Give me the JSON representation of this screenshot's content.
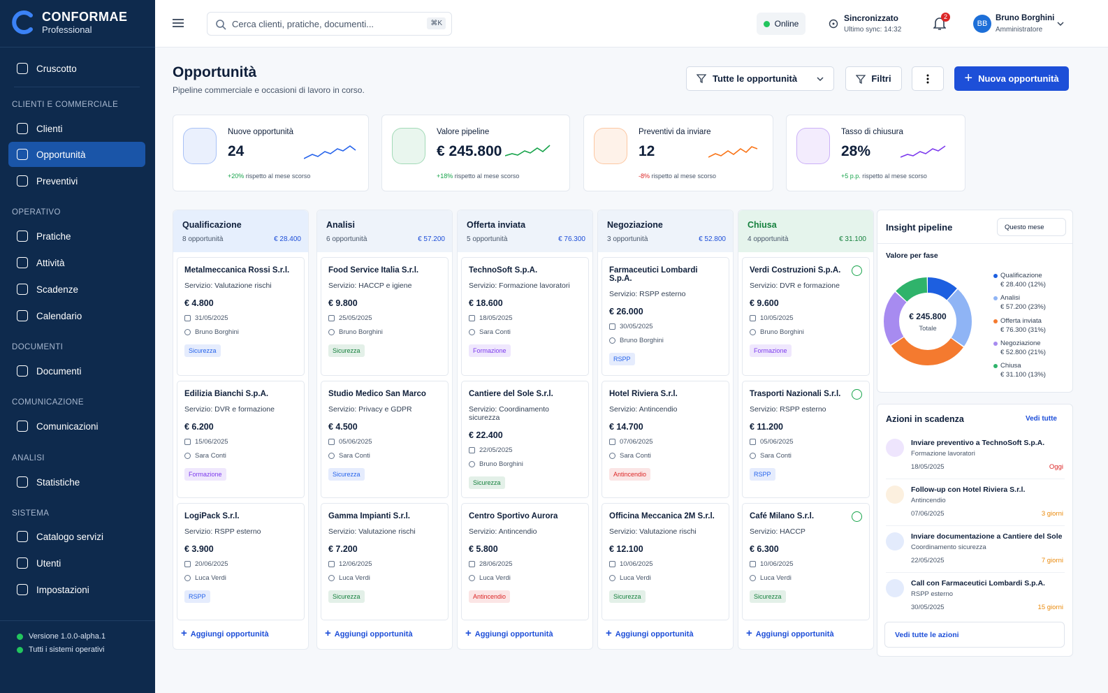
{
  "sidebar": {
    "brand": {
      "name": "CONFORMAE",
      "sub": "Professional"
    },
    "top_item": "Cruscotto",
    "sections": [
      {
        "title": "CLIENTI E COMMERCIALE",
        "items": [
          "Clienti",
          "Opportunità",
          "Preventivi"
        ]
      },
      {
        "title": "OPERATIVO",
        "items": [
          "Pratiche",
          "Attività",
          "Scadenze",
          "Calendario"
        ]
      },
      {
        "title": "DOCUMENTI",
        "items": [
          "Documenti"
        ]
      },
      {
        "title": "COMUNICAZIONE",
        "items": [
          "Comunicazioni"
        ]
      },
      {
        "title": "ANALISI",
        "items": [
          "Statistiche"
        ]
      },
      {
        "title": "SISTEMA",
        "items": [
          "Catalogo servizi",
          "Utenti",
          "Impostazioni"
        ]
      }
    ],
    "footer": [
      "Versione 1.0.0-alpha.1",
      "Tutti i sistemi operativi"
    ]
  },
  "topbar": {
    "search": "Cerca clienti, pratiche, documenti...",
    "shortcut": "⌘K",
    "status": "Online",
    "sync_title": "Sincronizzato",
    "sync_sub": "Ultimo sync: 14:32",
    "notifications": "2",
    "user_initials": "BB",
    "user_name": "Bruno Borghini",
    "user_role": "Amministratore"
  },
  "header": {
    "title": "Opportunità",
    "subtitle": "Pipeline commerciale e occasioni di lavoro in corso.",
    "filter_select": "Tutte le opportunità",
    "filters": "Filtri",
    "new_button": "Nuova opportunità"
  },
  "kpis": [
    {
      "label": "Nuove opportunità",
      "value": "24",
      "delta": "+20%",
      "note": "rispetto al mese scorso",
      "color": "#2563eb",
      "delta_color": "#16a34a"
    },
    {
      "label": "Valore pipeline",
      "value": "€ 245.800",
      "delta": "+18%",
      "note": "rispetto al mese scorso",
      "color": "#16a34a",
      "delta_color": "#16a34a"
    },
    {
      "label": "Preventivi da inviare",
      "value": "12",
      "delta": "-8%",
      "note": "rispetto al mese scorso",
      "color": "#f97316",
      "delta_color": "#dc2626"
    },
    {
      "label": "Tasso di chiusura",
      "value": "28%",
      "delta": "+5 p.p.",
      "note": "rispetto al mese scorso",
      "color": "#7c3aed",
      "delta_color": "#16a34a"
    }
  ],
  "columns": [
    {
      "title": "Qualificazione",
      "count": "8 opportunità",
      "total": "€ 28.400",
      "header_color": "#e6effd",
      "title_color": "#0f1f3a",
      "add": "Aggiungi opportunità",
      "cards": [
        {
          "company": "Metalmeccanica Rossi S.r.l.",
          "service": "Servizio: Valutazione rischi",
          "amount": "€ 4.800",
          "date": "31/05/2025",
          "owner": "Bruno Borghini",
          "tag": "Sicurezza",
          "tag_color": "#2563eb"
        },
        {
          "company": "Edilizia Bianchi S.p.A.",
          "service": "Servizio: DVR e formazione",
          "amount": "€ 6.200",
          "date": "15/06/2025",
          "owner": "Sara Conti",
          "tag": "Formazione",
          "tag_color": "#7c3aed"
        },
        {
          "company": "LogiPack S.r.l.",
          "service": "Servizio: RSPP esterno",
          "amount": "€ 3.900",
          "date": "20/06/2025",
          "owner": "Luca Verdi",
          "tag": "RSPP",
          "tag_color": "#2563eb"
        }
      ]
    },
    {
      "title": "Analisi",
      "count": "6 opportunità",
      "total": "€ 57.200",
      "header_color": "#eef3fa",
      "title_color": "#0f1f3a",
      "add": "Aggiungi opportunità",
      "cards": [
        {
          "company": "Food Service Italia S.r.l.",
          "service": "Servizio: HACCP e igiene",
          "amount": "€ 9.800",
          "date": "25/05/2025",
          "owner": "Bruno Borghini",
          "tag": "Sicurezza",
          "tag_color": "#15803d"
        },
        {
          "company": "Studio Medico San Marco",
          "service": "Servizio: Privacy e GDPR",
          "amount": "€ 4.500",
          "date": "05/06/2025",
          "owner": "Sara Conti",
          "tag": "Sicurezza",
          "tag_color": "#2563eb"
        },
        {
          "company": "Gamma Impianti S.r.l.",
          "service": "Servizio: Valutazione rischi",
          "amount": "€ 7.200",
          "date": "12/06/2025",
          "owner": "Luca Verdi",
          "tag": "Sicurezza",
          "tag_color": "#15803d"
        }
      ]
    },
    {
      "title": "Offerta inviata",
      "count": "5 opportunità",
      "total": "€ 76.300",
      "header_color": "#eef3fa",
      "title_color": "#0f1f3a",
      "add": "Aggiungi opportunità",
      "cards": [
        {
          "company": "TechnoSoft S.p.A.",
          "service": "Servizio: Formazione lavoratori",
          "amount": "€ 18.600",
          "date": "18/05/2025",
          "owner": "Sara Conti",
          "tag": "Formazione",
          "tag_color": "#7c3aed"
        },
        {
          "company": "Cantiere del Sole S.r.l.",
          "service": "Servizio: Coordinamento sicurezza",
          "amount": "€ 22.400",
          "date": "22/05/2025",
          "owner": "Bruno Borghini",
          "tag": "Sicurezza",
          "tag_color": "#15803d"
        },
        {
          "company": "Centro Sportivo Aurora",
          "service": "Servizio: Antincendio",
          "amount": "€ 5.800",
          "date": "28/06/2025",
          "owner": "Luca Verdi",
          "tag": "Antincendio",
          "tag_color": "#dc2626"
        }
      ]
    },
    {
      "title": "Negoziazione",
      "count": "3 opportunità",
      "total": "€ 52.800",
      "header_color": "#eef3fa",
      "title_color": "#0f1f3a",
      "add": "Aggiungi opportunità",
      "cards": [
        {
          "company": "Farmaceutici Lombardi S.p.A.",
          "service": "Servizio: RSPP esterno",
          "amount": "€ 26.000",
          "date": "30/05/2025",
          "owner": "Bruno Borghini",
          "tag": "RSPP",
          "tag_color": "#2563eb"
        },
        {
          "company": "Hotel Riviera S.r.l.",
          "service": "Servizio: Antincendio",
          "amount": "€ 14.700",
          "date": "07/06/2025",
          "owner": "Sara Conti",
          "tag": "Antincendio",
          "tag_color": "#dc2626"
        },
        {
          "company": "Officina Meccanica 2M S.r.l.",
          "service": "Servizio: Valutazione rischi",
          "amount": "€ 12.100",
          "date": "10/06/2025",
          "owner": "Luca Verdi",
          "tag": "Sicurezza",
          "tag_color": "#15803d"
        }
      ]
    },
    {
      "title": "Chiusa",
      "count": "4 opportunità",
      "total": "€ 31.100",
      "header_color": "#e5f4ec",
      "title_color": "#15803d",
      "add": "Aggiungi opportunità",
      "cards": [
        {
          "company": "Verdi Costruzioni S.p.A.",
          "service": "Servizio: DVR e formazione",
          "amount": "€ 9.600",
          "date": "10/05/2025",
          "owner": "Bruno Borghini",
          "tag": "Formazione",
          "tag_color": "#7c3aed"
        },
        {
          "company": "Trasporti Nazionali S.r.l.",
          "service": "Servizio: RSPP esterno",
          "amount": "€ 11.200",
          "date": "05/06/2025",
          "owner": "Sara Conti",
          "tag": "RSPP",
          "tag_color": "#2563eb"
        },
        {
          "company": "Café Milano S.r.l.",
          "service": "Servizio: HACCP",
          "amount": "€ 6.300",
          "date": "10/06/2025",
          "owner": "Luca Verdi",
          "tag": "Sicurezza",
          "tag_color": "#15803d"
        }
      ]
    }
  ],
  "insight": {
    "title": "Insight pipeline",
    "period": "Questo mese",
    "subtitle": "Valore per fase",
    "center_value": "€ 245.800",
    "center_label": "Totale",
    "segments": [
      {
        "label": "Qualificazione",
        "value_label": "€ 28.400 (12%)",
        "share": 12,
        "color": "#1d5fe0"
      },
      {
        "label": "Analisi",
        "value_label": "€ 57.200 (23%)",
        "share": 23,
        "color": "#8fb4f5"
      },
      {
        "label": "Offerta inviata",
        "value_label": "€ 76.300 (31%)",
        "share": 31,
        "color": "#f47a2f"
      },
      {
        "label": "Negoziazione",
        "value_label": "€ 52.800 (21%)",
        "share": 21,
        "color": "#a78bf0"
      },
      {
        "label": "Chiusa",
        "value_label": "€ 31.100 (13%)",
        "share": 13,
        "color": "#2fb36b"
      }
    ]
  },
  "actions": {
    "title": "Azioni in scadenza",
    "link": "Vedi tutte",
    "items": [
      {
        "title": "Inviare preventivo a TechnoSoft S.p.A.",
        "sub": "Formazione lavoratori",
        "date": "18/05/2025",
        "due": "Oggi",
        "due_color": "#dc2626",
        "icon_color": "#7c3aed"
      },
      {
        "title": "Follow-up con Hotel Riviera S.r.l.",
        "sub": "Antincendio",
        "date": "07/06/2025",
        "due": "3 giorni",
        "due_color": "#ea8a0c",
        "icon_color": "#ea8a0c"
      },
      {
        "title": "Inviare documentazione a Cantiere del Sole",
        "sub": "Coordinamento sicurezza",
        "date": "22/05/2025",
        "due": "7 giorni",
        "due_color": "#ea8a0c",
        "icon_color": "#2563eb"
      },
      {
        "title": "Call con Farmaceutici Lombardi S.p.A.",
        "sub": "RSPP esterno",
        "date": "30/05/2025",
        "due": "15 giorni",
        "due_color": "#ea8a0c",
        "icon_color": "#2563eb"
      }
    ],
    "footer": "Vedi tutte le azioni"
  }
}
